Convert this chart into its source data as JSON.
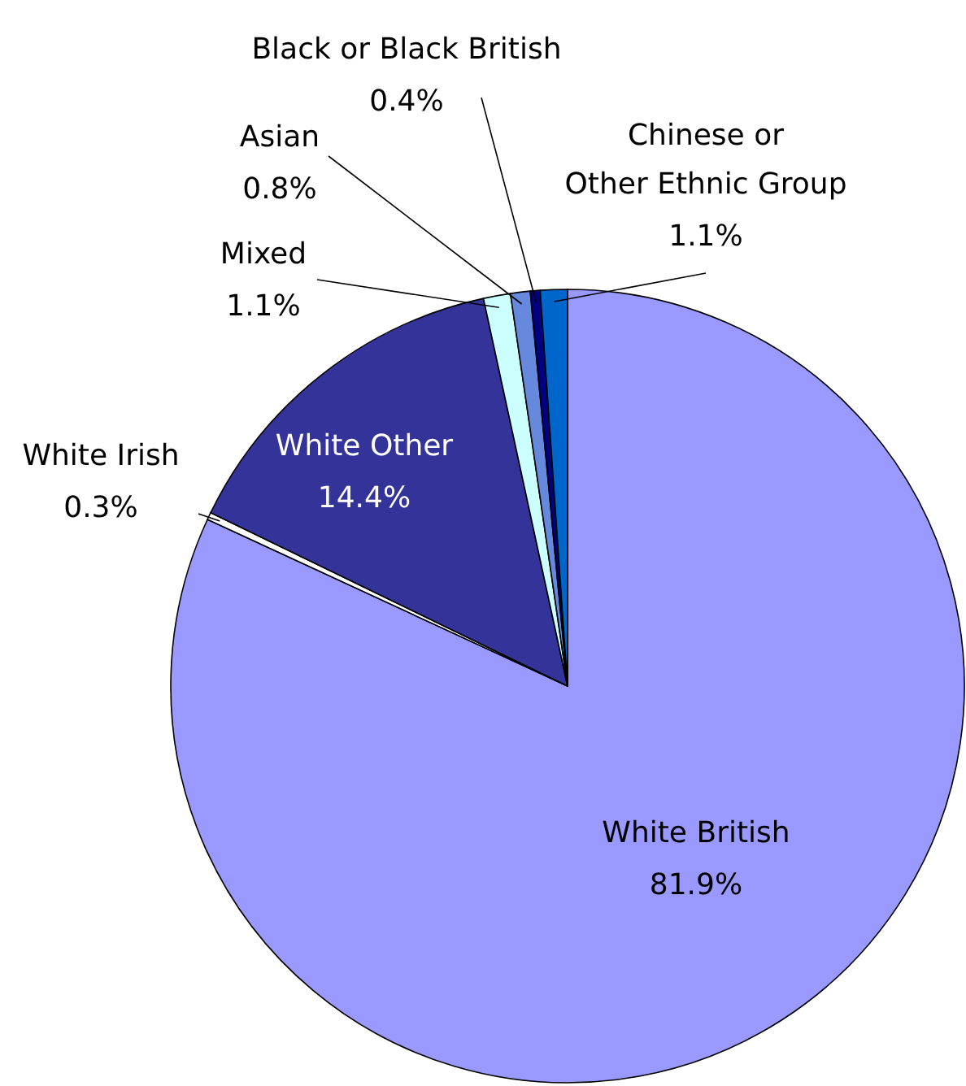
{
  "chart_data": {
    "type": "pie",
    "categories": [
      "White British",
      "White Irish",
      "White Other",
      "Mixed",
      "Asian",
      "Black or Black British",
      "Chinese or Other Ethnic Group"
    ],
    "values": [
      81.9,
      0.3,
      14.4,
      1.1,
      0.8,
      0.4,
      1.1
    ],
    "colors": [
      "#9999ff",
      "#ffffff",
      "#333399",
      "#ccffff",
      "#6688dd",
      "#000080",
      "#0066cc"
    ],
    "value_labels": [
      "81.9%",
      "0.3%",
      "14.4%",
      "1.1%",
      "0.8%",
      "0.4%",
      "1.1%"
    ]
  }
}
